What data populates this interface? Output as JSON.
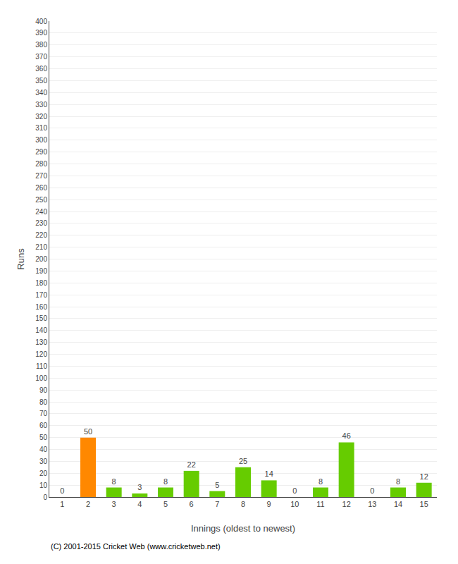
{
  "chart_data": {
    "type": "bar",
    "xlabel": "Innings (oldest to newest)",
    "ylabel": "Runs",
    "categories": [
      "1",
      "2",
      "3",
      "4",
      "5",
      "6",
      "7",
      "8",
      "9",
      "10",
      "11",
      "12",
      "13",
      "14",
      "15"
    ],
    "values": [
      0,
      50,
      8,
      3,
      8,
      22,
      5,
      25,
      14,
      0,
      8,
      46,
      0,
      8,
      12
    ],
    "colors": [
      "#66cc00",
      "#ff8800",
      "#66cc00",
      "#66cc00",
      "#66cc00",
      "#66cc00",
      "#66cc00",
      "#66cc00",
      "#66cc00",
      "#66cc00",
      "#66cc00",
      "#66cc00",
      "#66cc00",
      "#66cc00",
      "#66cc00"
    ],
    "ylim": [
      0,
      400
    ],
    "yticks": [
      0,
      10,
      20,
      30,
      40,
      50,
      60,
      70,
      80,
      90,
      100,
      110,
      120,
      130,
      140,
      150,
      160,
      170,
      180,
      190,
      200,
      210,
      220,
      230,
      240,
      250,
      260,
      270,
      280,
      290,
      300,
      310,
      320,
      330,
      340,
      350,
      360,
      370,
      380,
      390,
      400
    ],
    "grid": true,
    "data_labels": true,
    "annotations": [
      "(C) 2001-2015 Cricket Web (www.cricketweb.net)"
    ]
  }
}
